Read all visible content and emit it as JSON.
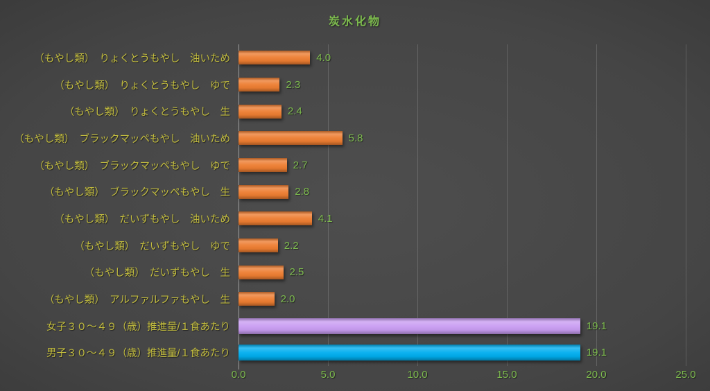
{
  "chart_data": {
    "type": "bar",
    "orientation": "horizontal",
    "title": "炭水化物",
    "xlabel": "",
    "ylabel": "",
    "xlim": [
      0,
      25
    ],
    "x_ticks": [
      "0.0",
      "5.0",
      "10.0",
      "15.0",
      "20.0",
      "25.0"
    ],
    "grid": true,
    "legend": "none",
    "rows": [
      {
        "label": "（もやし類）　りょくとうもやし　油いため",
        "value": 4.0,
        "display": "4.0",
        "series": "food"
      },
      {
        "label": "（もやし類）　りょくとうもやし　ゆで",
        "value": 2.3,
        "display": "2.3",
        "series": "food"
      },
      {
        "label": "（もやし類）　りょくとうもやし　生",
        "value": 2.4,
        "display": "2.4",
        "series": "food"
      },
      {
        "label": "（もやし類）　ブラックマッペもやし　油いため",
        "value": 5.8,
        "display": "5.8",
        "series": "food"
      },
      {
        "label": "（もやし類）　ブラックマッペもやし　ゆで",
        "value": 2.7,
        "display": "2.7",
        "series": "food"
      },
      {
        "label": "（もやし類）　ブラックマッペもやし　生",
        "value": 2.8,
        "display": "2.8",
        "series": "food"
      },
      {
        "label": "（もやし類）　だいずもやし　油いため",
        "value": 4.1,
        "display": "4.1",
        "series": "food"
      },
      {
        "label": "（もやし類）　だいずもやし　ゆで",
        "value": 2.2,
        "display": "2.2",
        "series": "food"
      },
      {
        "label": "（もやし類）　だいずもやし　生",
        "value": 2.5,
        "display": "2.5",
        "series": "food"
      },
      {
        "label": "（もやし類）　アルファルファもやし　生",
        "value": 2.0,
        "display": "2.0",
        "series": "food"
      },
      {
        "label": "女子３０～４９（歳）推進量/１食あたり",
        "value": 19.1,
        "display": "19.1",
        "series": "female_reference"
      },
      {
        "label": "男子３０～４９（歳）推進量/１食あたり",
        "value": 19.1,
        "display": "19.1",
        "series": "male_reference"
      }
    ],
    "colors": {
      "food": "#ED7D31",
      "female_reference": "#C99DF2",
      "male_reference": "#00AEEF",
      "title_text": "#7DBB4E",
      "value_label_text": "#7DBB4E",
      "category_label_text": "#C3BD3E",
      "axis_tick_text": "#7DBB4E",
      "gridline": "#6F6F6F",
      "axis_line": "#A0A0A0"
    }
  }
}
